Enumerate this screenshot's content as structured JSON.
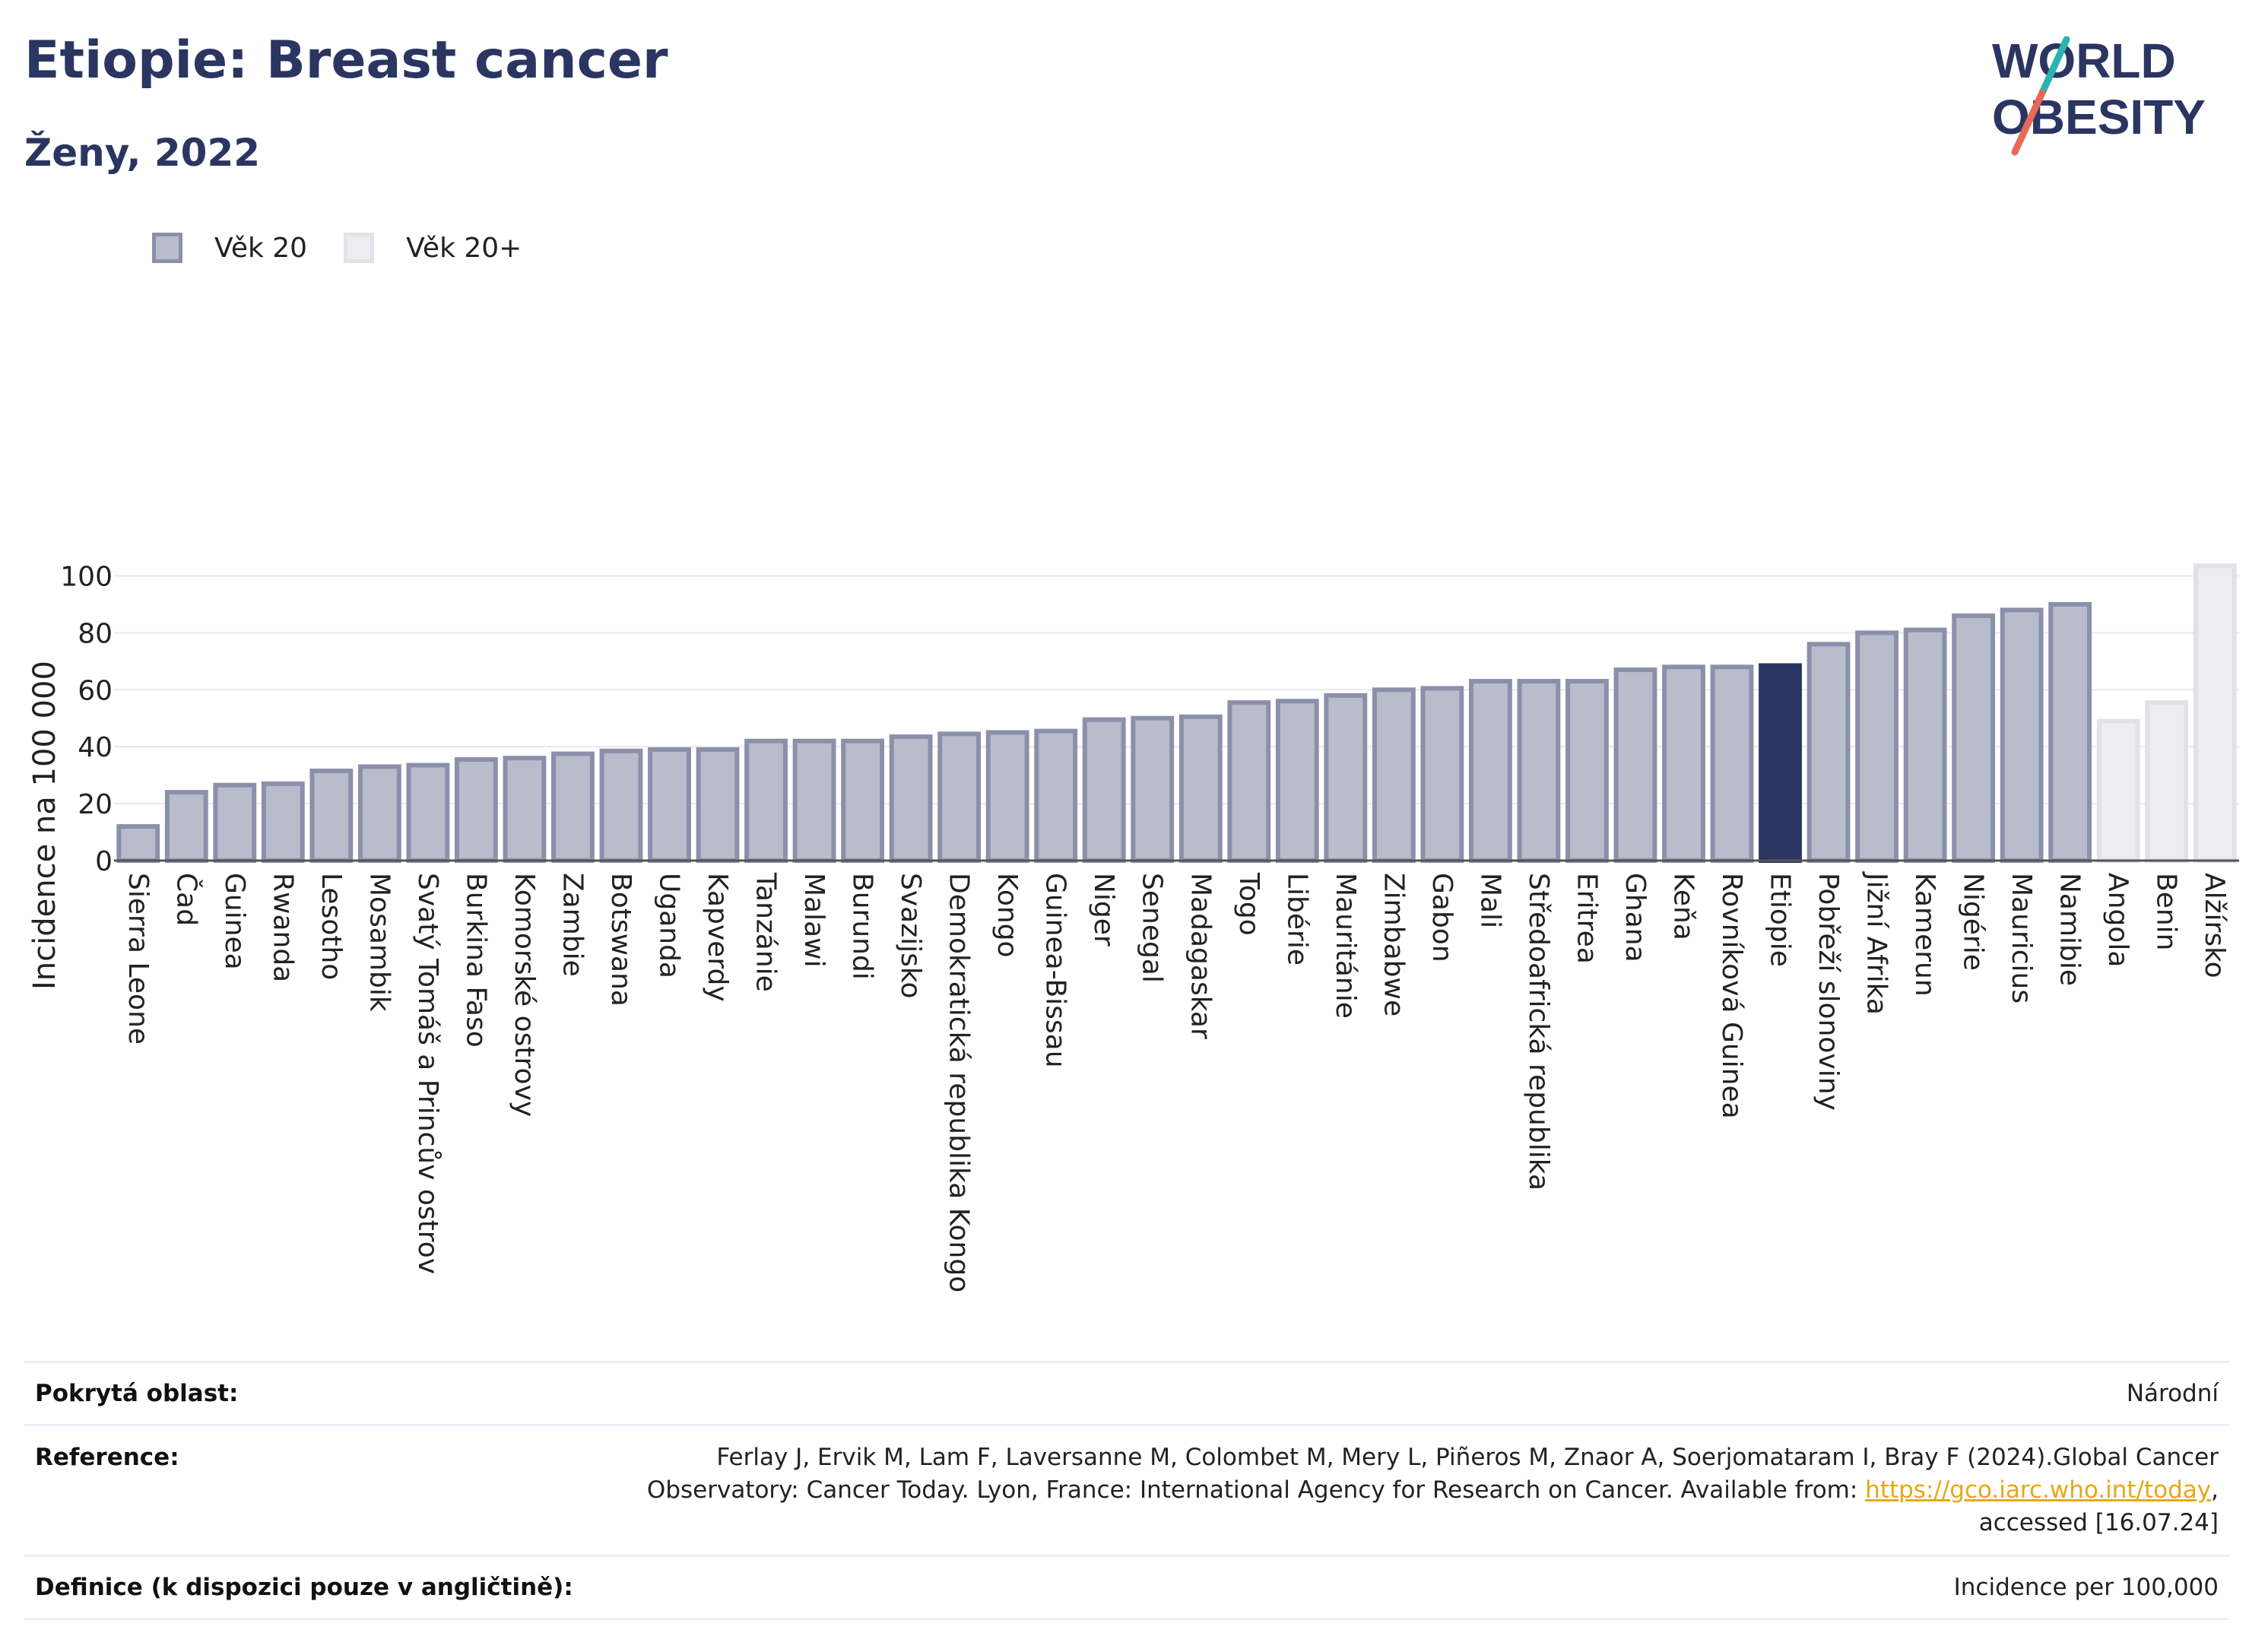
{
  "header": {
    "title": "Etiopie: Breast cancer",
    "subtitle": "Ženy, 2022"
  },
  "logo": {
    "line1": "WORLD",
    "line2": "OBESITY",
    "accent_colors": [
      "#2ab3b0",
      "#e8685a"
    ]
  },
  "legend": {
    "items": [
      {
        "label": "Věk 20",
        "color": "#b9bccb"
      },
      {
        "label": "Věk 20+",
        "color": "#ededf1"
      }
    ]
  },
  "chart_data": {
    "type": "bar",
    "ylabel": "Incidence na 100 000",
    "ylim": [
      0,
      110
    ],
    "yticks": [
      0,
      20,
      40,
      60,
      80,
      100
    ],
    "grid": true,
    "legend_position": "top-left",
    "colors": {
      "age20": "#b9bccb",
      "age20_edge": "#8b90aa",
      "age20plus": "#ededf1",
      "age20plus_edge": "#e1e2e8",
      "highlight": "#2a3561"
    },
    "highlight": "Etiopie",
    "categories": [
      "Sierra Leone",
      "Čad",
      "Guinea",
      "Rwanda",
      "Lesotho",
      "Mosambik",
      "Svatý Tomáš a Princův ostrov",
      "Burkina Faso",
      "Komorské ostrovy",
      "Zambie",
      "Botswana",
      "Uganda",
      "Kapverdy",
      "Tanzánie",
      "Malawi",
      "Burundi",
      "Svazijsko",
      "Demokratická republika Kongo",
      "Kongo",
      "Guinea-Bissau",
      "Niger",
      "Senegal",
      "Madagaskar",
      "Togo",
      "Libérie",
      "Mauritánie",
      "Zimbabwe",
      "Gabon",
      "Mali",
      "Středoafrická republika",
      "Eritrea",
      "Ghana",
      "Keňa",
      "Rovníková Guinea",
      "Etiopie",
      "Pobřeží slonoviny",
      "Jižní Afrika",
      "Kamerun",
      "Nigérie",
      "Mauricius",
      "Namibie",
      "Angola",
      "Benin",
      "Alžírsko"
    ],
    "values": [
      12,
      24,
      26.5,
      27,
      31.5,
      33,
      33.5,
      35.5,
      36,
      37.5,
      38.5,
      39,
      39,
      42,
      42,
      42,
      43.5,
      44.5,
      45,
      45.5,
      49.5,
      50,
      50.5,
      55.5,
      56,
      58,
      60,
      60.5,
      63,
      63,
      63,
      67,
      68,
      68,
      68.5,
      76,
      80,
      81,
      86,
      88,
      90,
      49,
      55.5,
      103.5
    ],
    "series_group": [
      "Věk 20",
      "Věk 20",
      "Věk 20",
      "Věk 20",
      "Věk 20",
      "Věk 20",
      "Věk 20",
      "Věk 20",
      "Věk 20",
      "Věk 20",
      "Věk 20",
      "Věk 20",
      "Věk 20",
      "Věk 20",
      "Věk 20",
      "Věk 20",
      "Věk 20",
      "Věk 20",
      "Věk 20",
      "Věk 20",
      "Věk 20",
      "Věk 20",
      "Věk 20",
      "Věk 20",
      "Věk 20",
      "Věk 20",
      "Věk 20",
      "Věk 20",
      "Věk 20",
      "Věk 20",
      "Věk 20",
      "Věk 20",
      "Věk 20",
      "Věk 20",
      "Věk 20",
      "Věk 20",
      "Věk 20",
      "Věk 20",
      "Věk 20",
      "Věk 20",
      "Věk 20",
      "Věk 20+",
      "Věk 20+",
      "Věk 20+"
    ]
  },
  "footer": {
    "coverage_label": "Pokrytá oblast:",
    "coverage_value": "Národní",
    "reference_label": "Reference:",
    "reference_line1": "Ferlay J, Ervik M, Lam F, Laversanne M, Colombet M, Mery L, Piñeros M, Znaor A, Soerjomataram I, Bray F (2024).Global Cancer",
    "reference_line2_pre": "Observatory: Cancer Today. Lyon, France: International Agency for Research on Cancer. Available from: ",
    "reference_link": "https://gco.iarc.who.int/today",
    "reference_line2_post": ",",
    "reference_line3": "accessed [16.07.24]",
    "definition_label": "Definice (k dispozici pouze v angličtině):",
    "definition_value": "Incidence per 100,000"
  }
}
